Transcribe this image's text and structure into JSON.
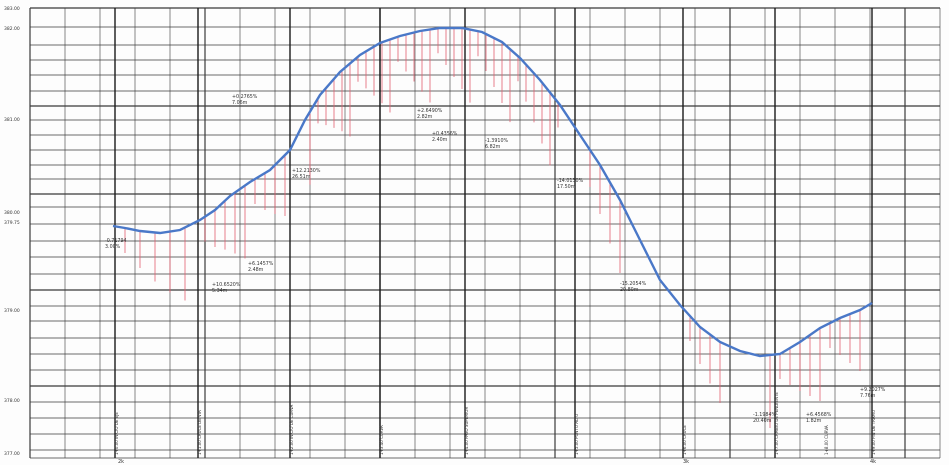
{
  "colors": {
    "grid": "#3a3a3a",
    "profile_line": "#4a78c8",
    "profile_line_dark": "#2b4f9a",
    "station_marker": "#e06070",
    "curve_label": "#c02030",
    "text": "#333333"
  },
  "elevation_labels": [
    "383.00",
    "382.00",
    "381.00",
    "380.00",
    "379.75",
    "379.00",
    "378.00",
    "377.00"
  ],
  "bottom_labels": [
    "2k",
    "3k",
    "4k"
  ],
  "vertical_stations": [
    "1+0.00 INICIO DE EJE",
    "1+1.00 CRUCE DE VIA",
    "1+2.00 INICIO DE CURVA",
    "1+3.40 CURVA",
    "1+4.00 PASO SUPERIOR",
    "1+5.00 PUNTO ALTO",
    "1+6.00 CRUCE",
    "1+7.00 CAMBIO DE PENDIENTE",
    "1+8.00 CURVA",
    "1+9.00 FIN DE TRAMO"
  ],
  "curve_labels": [
    "-0.71794 3.00%",
    "+10.6520% 5.34m",
    "+6.1457% 2.48m",
    "+12.2130% 26.51m",
    "+0.2765% 7.06m",
    "+2.6490% 2.82m",
    "+0.4356% 2.40m",
    "-1.3910% 6.82m",
    "-14.0130% 17.50m",
    "-15.2054% 20.80m",
    "-1.1984% 20.40m",
    "+6.4568% 1.82m",
    "+9.2027% 7.76m"
  ]
}
